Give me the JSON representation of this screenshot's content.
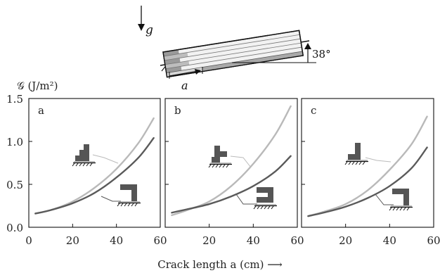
{
  "figure": {
    "gravity_label": "g",
    "angle_label": "38°",
    "crack_label": "a",
    "y_axis_label": "𝒢 (J/m²)",
    "x_axis_label": "Crack length a (cm) ⟶"
  },
  "colors": {
    "light_curve": "#b9b9b9",
    "dark_curve": "#5a5a5a",
    "frame": "#111111",
    "icon_fill": "#555555"
  },
  "chart_data": [
    {
      "type": "line",
      "panel": "a",
      "x": [
        3,
        10,
        20,
        30,
        40,
        50,
        57
      ],
      "series": [
        {
          "values": [
            0.16,
            0.2,
            0.3,
            0.46,
            0.68,
            0.98,
            1.27
          ]
        },
        {
          "values": [
            0.16,
            0.2,
            0.28,
            0.4,
            0.58,
            0.81,
            1.04
          ]
        }
      ],
      "xlim": [
        0,
        60
      ],
      "ylim": [
        0,
        1.5
      ],
      "xticks": [
        0,
        20,
        40,
        60
      ],
      "yticks": [
        0.0,
        0.5,
        1.0,
        1.5
      ]
    },
    {
      "type": "line",
      "panel": "b",
      "x": [
        3,
        10,
        20,
        30,
        40,
        50,
        57
      ],
      "series": [
        {
          "values": [
            0.14,
            0.2,
            0.3,
            0.48,
            0.74,
            1.08,
            1.41
          ]
        },
        {
          "values": [
            0.17,
            0.21,
            0.27,
            0.36,
            0.48,
            0.65,
            0.83
          ]
        }
      ],
      "xlim": [
        0,
        60
      ],
      "ylim": [
        0,
        1.5
      ],
      "xticks": [
        0,
        20,
        40,
        60
      ],
      "yticks": [
        0.0,
        0.5,
        1.0,
        1.5
      ]
    },
    {
      "type": "line",
      "panel": "c",
      "x": [
        3,
        10,
        20,
        30,
        40,
        50,
        57
      ],
      "series": [
        {
          "values": [
            0.13,
            0.18,
            0.27,
            0.43,
            0.67,
            0.97,
            1.29
          ]
        },
        {
          "values": [
            0.13,
            0.17,
            0.24,
            0.34,
            0.48,
            0.69,
            0.93
          ]
        }
      ],
      "xlim": [
        0,
        60
      ],
      "ylim": [
        0,
        1.5
      ],
      "xticks": [
        0,
        20,
        40,
        60
      ],
      "yticks": [
        0.0,
        0.5,
        1.0,
        1.5
      ]
    }
  ]
}
